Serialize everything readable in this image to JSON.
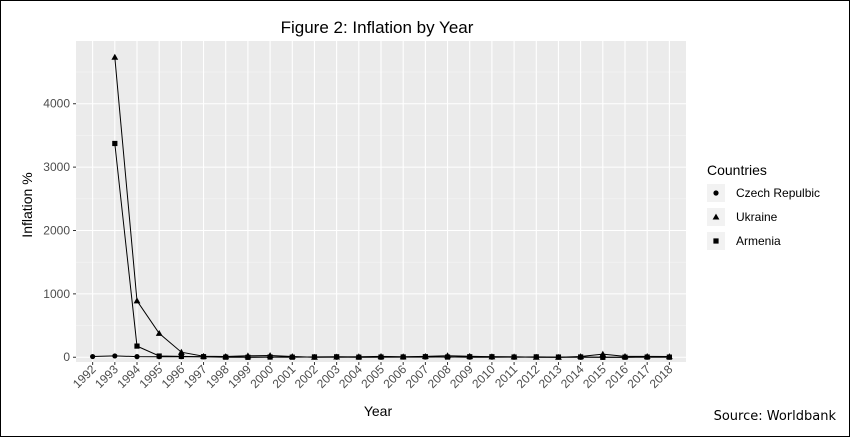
{
  "chart_data": {
    "type": "line",
    "title": "Figure 2: Inflation by Year",
    "xlabel": "Year",
    "ylabel": "Inflation %",
    "x": [
      1992,
      1993,
      1994,
      1995,
      1996,
      1997,
      1998,
      1999,
      2000,
      2001,
      2002,
      2003,
      2004,
      2005,
      2006,
      2007,
      2008,
      2009,
      2010,
      2011,
      2012,
      2013,
      2014,
      2015,
      2016,
      2017,
      2018
    ],
    "ylim": [
      -75,
      4990
    ],
    "yticks": [
      0,
      1000,
      2000,
      3000,
      4000
    ],
    "grid": true,
    "legend": {
      "title": "Countries",
      "position": "right"
    },
    "series": [
      {
        "name": "Czech Repulbic",
        "marker": "circle",
        "x": [
          1992,
          1993,
          1994,
          1995,
          1996,
          1997,
          1998,
          1999,
          2000,
          2001,
          2002,
          2003,
          2004,
          2005,
          2006,
          2007,
          2008,
          2009,
          2010,
          2011,
          2012,
          2013,
          2014,
          2015,
          2016,
          2017,
          2018
        ],
        "values": [
          11,
          21,
          10,
          9,
          9,
          8,
          11,
          2,
          4,
          5,
          2,
          0,
          3,
          2,
          3,
          3,
          6,
          1,
          1,
          2,
          3,
          1,
          0,
          0,
          1,
          2,
          2
        ]
      },
      {
        "name": "Ukraine",
        "marker": "triangle",
        "x": [
          1993,
          1994,
          1995,
          1996,
          1997,
          1998,
          1999,
          2000,
          2001,
          2002,
          2003,
          2004,
          2005,
          2006,
          2007,
          2008,
          2009,
          2010,
          2011,
          2012,
          2013,
          2014,
          2015,
          2016,
          2017,
          2018
        ],
        "values": [
          4735,
          891,
          377,
          80,
          16,
          11,
          23,
          28,
          12,
          1,
          5,
          9,
          14,
          9,
          13,
          25,
          16,
          9,
          8,
          1,
          0,
          12,
          49,
          14,
          14,
          11
        ]
      },
      {
        "name": "Armenia",
        "marker": "square",
        "x": [
          1993,
          1994,
          1995,
          1996,
          1997,
          1998,
          1999,
          2000,
          2001,
          2002,
          2003,
          2004,
          2005,
          2006,
          2007,
          2008,
          2009,
          2010,
          2011,
          2012,
          2013,
          2014,
          2015,
          2016,
          2017,
          2018
        ],
        "values": [
          3373,
          176,
          19,
          14,
          9,
          1,
          -1,
          3,
          1,
          5,
          7,
          1,
          3,
          4,
          9,
          3,
          8,
          8,
          3,
          6,
          3,
          4,
          -1,
          1,
          3,
          2
        ]
      }
    ]
  },
  "source_note": "Source: Worldbank"
}
